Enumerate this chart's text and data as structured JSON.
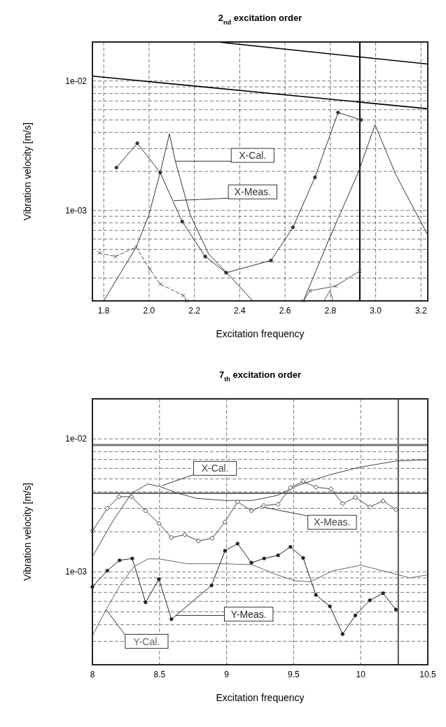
{
  "chart_data": [
    {
      "type": "line",
      "title": "2$_{nd}$ excitation order",
      "xlabel": "Excitation frequency",
      "ylabel": "Vibration velocity [m/s]",
      "log": "y",
      "grid": true,
      "legend": false,
      "xlim": [
        1.75,
        3.23
      ],
      "xticks": [
        1.8,
        {
          "value": 2,
          "label": "2.0"
        },
        2.2,
        2.4,
        2.6,
        2.8,
        {
          "value": 3,
          "label": "3.0"
        },
        3.2
      ],
      "ylim": [
        0.0002,
        0.02
      ],
      "yticks": [
        {
          "value": 0.0002,
          "label": null
        },
        {
          "value": 0.0003,
          "label": null
        },
        {
          "value": 0.0004,
          "label": null
        },
        {
          "value": 0.0005,
          "label": null
        },
        {
          "value": 0.0006,
          "label": null
        },
        {
          "value": 0.0007,
          "label": null
        },
        {
          "value": 0.0008,
          "label": null
        },
        {
          "value": 0.0009,
          "label": null
        },
        {
          "value": 0.001,
          "label": "1e-03"
        },
        {
          "value": 0.002,
          "label": null
        },
        {
          "value": 0.003,
          "label": null
        },
        {
          "value": 0.004,
          "label": null
        },
        {
          "value": 0.005,
          "label": null
        },
        {
          "value": 0.006,
          "label": null
        },
        {
          "value": 0.007,
          "label": null
        },
        {
          "value": 0.008,
          "label": null
        },
        {
          "value": 0.009,
          "label": null
        },
        {
          "value": 0.01,
          "label": "1e-02"
        },
        {
          "value": 0.02,
          "label": null
        }
      ],
      "ref_lines": [
        {
          "axis": "x",
          "value": 2.93,
          "color": "#000000"
        }
      ],
      "series": [
        {
          "name": "X-Cal.",
          "color": "#333333",
          "marker": "none",
          "x": [
            1.8,
            1.943,
            1.999,
            2.049,
            2.09,
            2.116,
            2.182,
            2.263,
            2.365,
            2.457,
            2.55,
            2.681,
            2.803,
            2.925,
            2.997,
            3.088,
            3.229
          ],
          "values": [
            0.0002,
            0.00052,
            0.00092,
            0.00196,
            0.0039,
            0.0024,
            0.00092,
            0.00046,
            0.0003,
            0.0002,
            null,
            0.0002,
            0.00065,
            0.002,
            0.0046,
            0.0019,
            0.00065
          ]
        },
        {
          "name": "X-Meas.",
          "color": "#333333",
          "marker": "circle",
          "x": [
            1.856,
            1.948,
            2.049,
            2.146,
            2.248,
            2.34,
            2.538,
            2.635,
            2.732,
            2.834,
            2.935
          ],
          "values": [
            0.00214,
            0.0033,
            0.00196,
            0.00082,
            0.00044,
            0.00033,
            0.00041,
            0.00074,
            0.0018,
            0.0057,
            0.005
          ]
        },
        {
          "color": "#555555",
          "marker": "cross",
          "line_style": "dashed",
          "x": [
            1.78,
            1.851,
            1.943,
            2.004,
            2.049,
            2.151,
            2.166
          ],
          "values": [
            0.00047,
            0.00044,
            0.00052,
            0.00035,
            0.00027,
            0.00022,
            0.0002
          ]
        },
        {
          "color": "#555555",
          "marker": "cross",
          "line_style": "solid",
          "x": [
            2.681,
            2.711,
            2.823,
            2.93
          ],
          "values": [
            0.0002,
            0.00024,
            0.00026,
            0.00034
          ]
        },
        {
          "color": "#555555",
          "marker": "none",
          "x": [
            2.772,
            2.798,
            2.813
          ],
          "values": [
            0.0002,
            0.00024,
            0.0002
          ]
        },
        {
          "color": "#000000",
          "marker": "none",
          "x": [
            2.3,
            3.23
          ],
          "values": [
            0.02,
            0.0135
          ]
        },
        {
          "color": "#000000",
          "marker": "none",
          "x": [
            1.75,
            3.23
          ],
          "values": [
            0.0109,
            0.0061
          ]
        }
      ]
    },
    {
      "type": "line",
      "title": "7$_{th}$ excitation order",
      "xlabel": "Excitation frequency",
      "ylabel": "Vibration velocity [m/s]",
      "log": "y",
      "grid": true,
      "legend": false,
      "xlim": [
        8,
        10.5
      ],
      "xticks": [
        8,
        8.5,
        9,
        9.5,
        10,
        10.5
      ],
      "ylim": [
        0.0002,
        0.02
      ],
      "yticks": [
        {
          "value": 0.0002,
          "label": null
        },
        {
          "value": 0.0003,
          "label": null
        },
        {
          "value": 0.0004,
          "label": null
        },
        {
          "value": 0.0005,
          "label": null
        },
        {
          "value": 0.0006,
          "label": null
        },
        {
          "value": 0.0007,
          "label": null
        },
        {
          "value": 0.0008,
          "label": null
        },
        {
          "value": 0.0009,
          "label": null
        },
        {
          "value": 0.001,
          "label": "1e-03"
        },
        {
          "value": 0.002,
          "label": null
        },
        {
          "value": 0.003,
          "label": null
        },
        {
          "value": 0.004,
          "label": null
        },
        {
          "value": 0.005,
          "label": null
        },
        {
          "value": 0.006,
          "label": null
        },
        {
          "value": 0.007,
          "label": null
        },
        {
          "value": 0.008,
          "label": null
        },
        {
          "value": 0.009,
          "label": null
        },
        {
          "value": 0.01,
          "label": "1e-02"
        },
        {
          "value": 0.02,
          "label": null
        }
      ],
      "ref_lines": [
        {
          "axis": "x",
          "value": 10.28,
          "color": "#555555"
        },
        {
          "axis": "y",
          "value": 0.009,
          "color": "#777777"
        },
        {
          "axis": "y",
          "value": 0.0039,
          "color": "#000000"
        }
      ],
      "series": [
        {
          "name": "X-Cal.",
          "color": "#444444",
          "marker": "none",
          "x": [
            8,
            8.154,
            8.292,
            8.413,
            8.499,
            8.638,
            8.776,
            8.983,
            9.191,
            9.381,
            9.536,
            9.761,
            9.986,
            10.262,
            10.5
          ],
          "values": [
            0.0013,
            0.00242,
            0.0039,
            0.00458,
            0.00439,
            0.0039,
            0.00357,
            0.00344,
            0.00344,
            0.00376,
            0.00448,
            0.00534,
            0.0061,
            0.00681,
            0.00697
          ]
        },
        {
          "name": "X-Meas.",
          "color": "#444444",
          "marker": "diamond",
          "x": [
            8,
            8.111,
            8.197,
            8.292,
            8.396,
            8.496,
            8.589,
            8.689,
            8.79,
            8.893,
            8.988,
            9.082,
            9.185,
            9.277,
            9.384,
            9.476,
            9.571,
            9.666,
            9.778,
            9.865,
            9.96,
            10.068,
            10.167,
            10.262
          ],
          "values": [
            0.00203,
            0.003,
            0.00367,
            0.00367,
            0.00288,
            0.00231,
            0.00181,
            0.0019,
            0.00171,
            0.00179,
            0.00237,
            0.00336,
            0.00288,
            0.00315,
            0.00322,
            0.00429,
            0.00479,
            0.00433,
            0.0042,
            0.00326,
            0.00362,
            0.00308,
            0.00341,
            0.00294
          ]
        },
        {
          "name": "Y-Meas.",
          "color": "#222222",
          "marker": "circle",
          "x": [
            8,
            8.111,
            8.202,
            8.297,
            8.396,
            8.496,
            8.589,
            8.888,
            8.988,
            9.082,
            9.185,
            9.28,
            9.384,
            9.476,
            9.571,
            9.666,
            9.77,
            9.865,
            9.96,
            10.068,
            10.167,
            10.262
          ],
          "values": [
            0.00077,
            0.00102,
            0.00122,
            0.00126,
            0.00059,
            0.00088,
            0.00044,
            0.00079,
            0.00144,
            0.00163,
            0.00117,
            0.00126,
            0.00133,
            0.00154,
            0.00127,
            0.00067,
            0.00055,
            0.00034,
            0.00047,
            0.00061,
            0.00069,
            0.00052
          ]
        },
        {
          "name": "Y-Cal.",
          "color": "#666666",
          "marker": "none",
          "x": [
            8,
            8.102,
            8.206,
            8.309,
            8.413,
            8.499,
            8.707,
            8.983,
            9.191,
            9.363,
            9.502,
            9.623,
            9.795,
            10.003,
            10.227,
            10.366,
            10.5
          ],
          "values": [
            0.00033,
            0.00052,
            0.00079,
            0.00109,
            0.00125,
            0.00125,
            0.00115,
            0.00115,
            0.00113,
            0.00096,
            0.00086,
            0.00084,
            0.00102,
            0.00112,
            0.00098,
            0.0009,
            0.00095
          ]
        }
      ]
    }
  ]
}
